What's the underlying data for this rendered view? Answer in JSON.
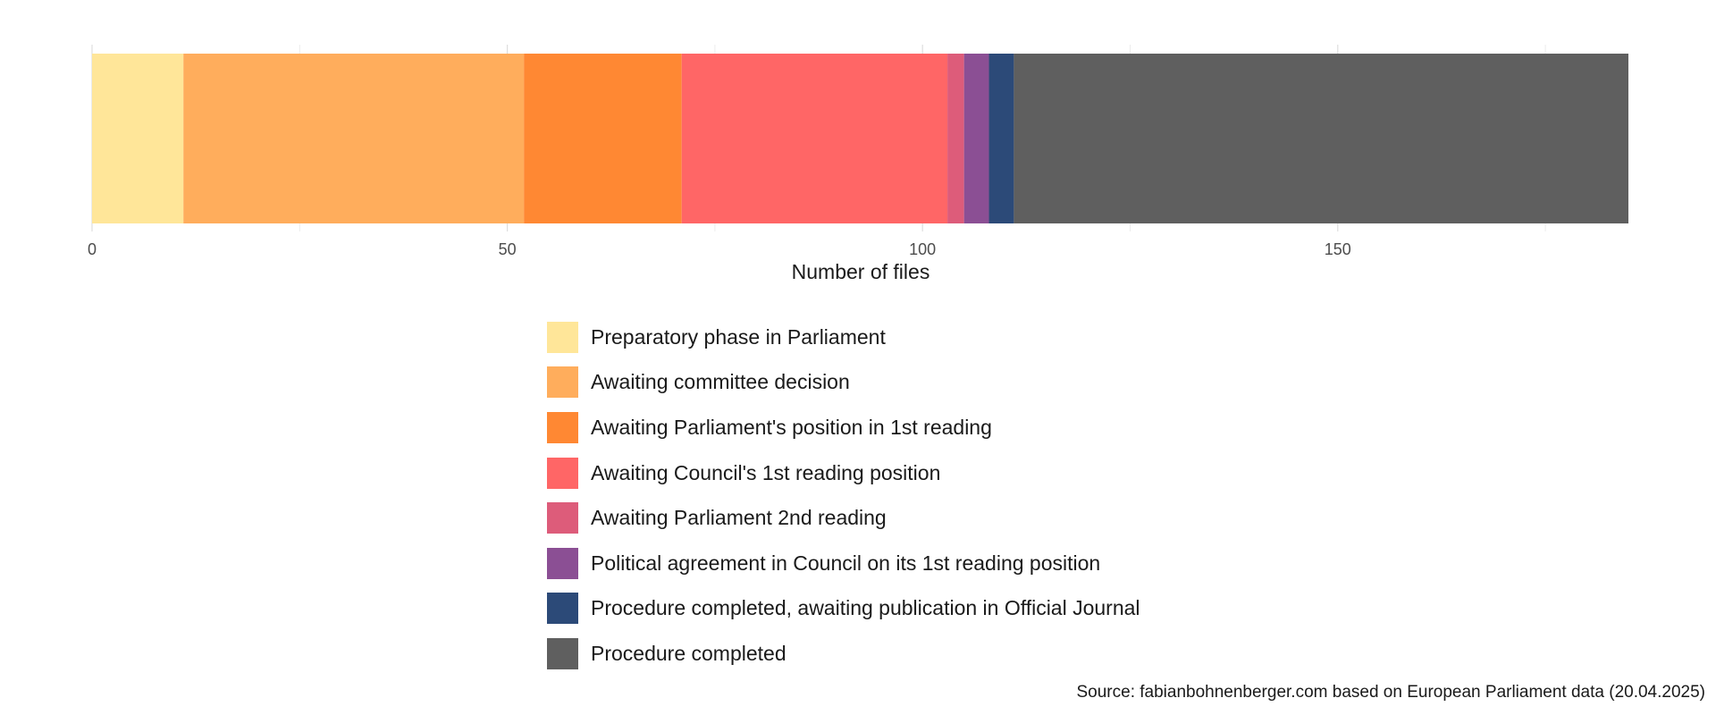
{
  "chart_data": {
    "type": "bar",
    "orientation": "horizontal",
    "stacked": true,
    "categories": [
      ""
    ],
    "series": [
      {
        "name": "Preparatory phase in Parliament",
        "values": [
          11
        ],
        "color": "#FFE699"
      },
      {
        "name": "Awaiting committee decision",
        "values": [
          41
        ],
        "color": "#FFAD5C"
      },
      {
        "name": "Awaiting Parliament's position in 1st reading",
        "values": [
          19
        ],
        "color": "#FF8833"
      },
      {
        "name": "Awaiting Council's 1st reading position",
        "values": [
          32
        ],
        "color": "#FF6666"
      },
      {
        "name": "Awaiting Parliament 2nd reading",
        "values": [
          2
        ],
        "color": "#DD5C7A"
      },
      {
        "name": "Political agreement in Council on its 1st reading position",
        "values": [
          3
        ],
        "color": "#8B4F94"
      },
      {
        "name": "Procedure completed, awaiting publication in Official Journal",
        "values": [
          3
        ],
        "color": "#2C4A78"
      },
      {
        "name": "Procedure completed",
        "values": [
          74
        ],
        "color": "#5F5F5F"
      }
    ],
    "xlabel": "Number of files",
    "ylabel": "",
    "xlim": [
      0,
      185
    ],
    "xticks": [
      0,
      50,
      100,
      150
    ],
    "xtick_labels": [
      "0",
      "50",
      "100",
      "150"
    ],
    "minor_grid": [
      25,
      75,
      125,
      175
    ],
    "grid": true,
    "legend_position": "bottom",
    "caption": "Source: fabianbohnenberger.com based on European Parliament data (20.04.2025)"
  }
}
